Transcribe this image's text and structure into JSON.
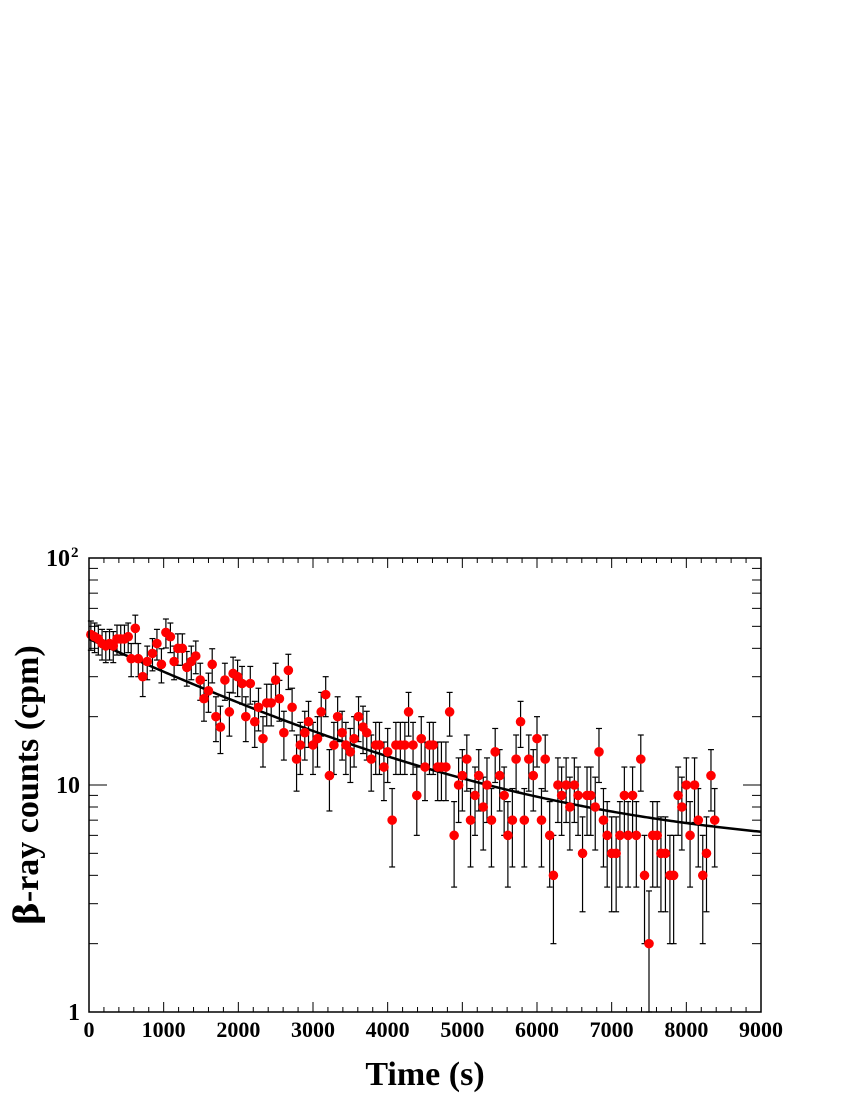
{
  "chart_data": {
    "type": "scatter",
    "title": "",
    "xlabel": "Time (s)",
    "ylabel_prefix": "β",
    "ylabel_rest": "-ray counts (cpm)",
    "xlim": [
      0,
      9000
    ],
    "ylim": [
      1,
      100
    ],
    "yscale": "log",
    "grid": false,
    "xticks": [
      {
        "value": 0,
        "label": "0"
      },
      {
        "value": 1000,
        "label": "1000"
      },
      {
        "value": 2000,
        "label": "2000"
      },
      {
        "value": 3000,
        "label": "3000"
      },
      {
        "value": 4000,
        "label": "4000"
      },
      {
        "value": 5000,
        "label": "5000"
      },
      {
        "value": 6000,
        "label": "6000"
      },
      {
        "value": 7000,
        "label": "7000"
      },
      {
        "value": 8000,
        "label": "8000"
      },
      {
        "value": 9000,
        "label": "9000"
      }
    ],
    "yticks": [
      {
        "value": 1,
        "label": "1",
        "exp": ""
      },
      {
        "value": 10,
        "label": "10",
        "exp": ""
      },
      {
        "value": 100,
        "label": "10",
        "exp": "2"
      }
    ],
    "marker_color": "#ff0000",
    "fit_color": "#000000",
    "error_bars": "sqrt(N)",
    "fit": {
      "A": 39.0,
      "tau": 2600,
      "B": 5.0
    },
    "points": [
      {
        "x": 25,
        "y": 46
      },
      {
        "x": 75,
        "y": 45
      },
      {
        "x": 125,
        "y": 44
      },
      {
        "x": 175,
        "y": 42
      },
      {
        "x": 225,
        "y": 41
      },
      {
        "x": 275,
        "y": 42
      },
      {
        "x": 325,
        "y": 41
      },
      {
        "x": 375,
        "y": 44
      },
      {
        "x": 425,
        "y": 44
      },
      {
        "x": 475,
        "y": 44
      },
      {
        "x": 525,
        "y": 45
      },
      {
        "x": 565,
        "y": 36
      },
      {
        "x": 620,
        "y": 49
      },
      {
        "x": 660,
        "y": 36
      },
      {
        "x": 720,
        "y": 30
      },
      {
        "x": 780,
        "y": 35
      },
      {
        "x": 850,
        "y": 38
      },
      {
        "x": 910,
        "y": 42
      },
      {
        "x": 970,
        "y": 34
      },
      {
        "x": 1030,
        "y": 47
      },
      {
        "x": 1090,
        "y": 45
      },
      {
        "x": 1140,
        "y": 35
      },
      {
        "x": 1190,
        "y": 40
      },
      {
        "x": 1250,
        "y": 40
      },
      {
        "x": 1310,
        "y": 33
      },
      {
        "x": 1370,
        "y": 35
      },
      {
        "x": 1430,
        "y": 37
      },
      {
        "x": 1490,
        "y": 29
      },
      {
        "x": 1540,
        "y": 24
      },
      {
        "x": 1600,
        "y": 26
      },
      {
        "x": 1650,
        "y": 34
      },
      {
        "x": 1700,
        "y": 20
      },
      {
        "x": 1760,
        "y": 18
      },
      {
        "x": 1820,
        "y": 29
      },
      {
        "x": 1880,
        "y": 21
      },
      {
        "x": 1930,
        "y": 31
      },
      {
        "x": 1990,
        "y": 30
      },
      {
        "x": 2050,
        "y": 28
      },
      {
        "x": 2100,
        "y": 20
      },
      {
        "x": 2160,
        "y": 28
      },
      {
        "x": 2220,
        "y": 19
      },
      {
        "x": 2270,
        "y": 22
      },
      {
        "x": 2330,
        "y": 16
      },
      {
        "x": 2380,
        "y": 23
      },
      {
        "x": 2440,
        "y": 23
      },
      {
        "x": 2500,
        "y": 29
      },
      {
        "x": 2550,
        "y": 24
      },
      {
        "x": 2610,
        "y": 17
      },
      {
        "x": 2670,
        "y": 32
      },
      {
        "x": 2720,
        "y": 22
      },
      {
        "x": 2780,
        "y": 13
      },
      {
        "x": 2830,
        "y": 15
      },
      {
        "x": 2890,
        "y": 17
      },
      {
        "x": 2940,
        "y": 19
      },
      {
        "x": 3000,
        "y": 15
      },
      {
        "x": 3060,
        "y": 16
      },
      {
        "x": 3110,
        "y": 21
      },
      {
        "x": 3170,
        "y": 25
      },
      {
        "x": 3220,
        "y": 11
      },
      {
        "x": 3280,
        "y": 15
      },
      {
        "x": 3330,
        "y": 20
      },
      {
        "x": 3390,
        "y": 17
      },
      {
        "x": 3440,
        "y": 15
      },
      {
        "x": 3500,
        "y": 14
      },
      {
        "x": 3550,
        "y": 16
      },
      {
        "x": 3610,
        "y": 20
      },
      {
        "x": 3670,
        "y": 18
      },
      {
        "x": 3720,
        "y": 17
      },
      {
        "x": 3780,
        "y": 13
      },
      {
        "x": 3840,
        "y": 15
      },
      {
        "x": 3890,
        "y": 15
      },
      {
        "x": 3950,
        "y": 12
      },
      {
        "x": 4000,
        "y": 14
      },
      {
        "x": 4060,
        "y": 7
      },
      {
        "x": 4110,
        "y": 15
      },
      {
        "x": 4170,
        "y": 15
      },
      {
        "x": 4230,
        "y": 15
      },
      {
        "x": 4280,
        "y": 21
      },
      {
        "x": 4340,
        "y": 15
      },
      {
        "x": 4390,
        "y": 9
      },
      {
        "x": 4450,
        "y": 16
      },
      {
        "x": 4500,
        "y": 12
      },
      {
        "x": 4560,
        "y": 15
      },
      {
        "x": 4610,
        "y": 15
      },
      {
        "x": 4670,
        "y": 12
      },
      {
        "x": 4720,
        "y": 12
      },
      {
        "x": 4780,
        "y": 12
      },
      {
        "x": 4830,
        "y": 21
      },
      {
        "x": 4890,
        "y": 6
      },
      {
        "x": 4950,
        "y": 10
      },
      {
        "x": 5000,
        "y": 11
      },
      {
        "x": 5060,
        "y": 13
      },
      {
        "x": 5110,
        "y": 7
      },
      {
        "x": 5170,
        "y": 9
      },
      {
        "x": 5220,
        "y": 11
      },
      {
        "x": 5280,
        "y": 8
      },
      {
        "x": 5330,
        "y": 10
      },
      {
        "x": 5390,
        "y": 7
      },
      {
        "x": 5440,
        "y": 14
      },
      {
        "x": 5500,
        "y": 11
      },
      {
        "x": 5560,
        "y": 9
      },
      {
        "x": 5610,
        "y": 6
      },
      {
        "x": 5670,
        "y": 7
      },
      {
        "x": 5720,
        "y": 13
      },
      {
        "x": 5780,
        "y": 19
      },
      {
        "x": 5830,
        "y": 7
      },
      {
        "x": 5890,
        "y": 13
      },
      {
        "x": 5950,
        "y": 11
      },
      {
        "x": 6000,
        "y": 16
      },
      {
        "x": 6060,
        "y": 7
      },
      {
        "x": 6110,
        "y": 13
      },
      {
        "x": 6170,
        "y": 6
      },
      {
        "x": 6220,
        "y": 4
      },
      {
        "x": 6280,
        "y": 10
      },
      {
        "x": 6330,
        "y": 9
      },
      {
        "x": 6390,
        "y": 10
      },
      {
        "x": 6440,
        "y": 8
      },
      {
        "x": 6500,
        "y": 10
      },
      {
        "x": 6550,
        "y": 9
      },
      {
        "x": 6610,
        "y": 5
      },
      {
        "x": 6670,
        "y": 9
      },
      {
        "x": 6720,
        "y": 9
      },
      {
        "x": 6780,
        "y": 8
      },
      {
        "x": 6830,
        "y": 14
      },
      {
        "x": 6890,
        "y": 7
      },
      {
        "x": 6940,
        "y": 6
      },
      {
        "x": 7000,
        "y": 5
      },
      {
        "x": 7060,
        "y": 5
      },
      {
        "x": 7110,
        "y": 6
      },
      {
        "x": 7170,
        "y": 9
      },
      {
        "x": 7220,
        "y": 6
      },
      {
        "x": 7280,
        "y": 9
      },
      {
        "x": 7330,
        "y": 6
      },
      {
        "x": 7390,
        "y": 13
      },
      {
        "x": 7440,
        "y": 4
      },
      {
        "x": 7500,
        "y": 2
      },
      {
        "x": 7550,
        "y": 6
      },
      {
        "x": 7610,
        "y": 6
      },
      {
        "x": 7660,
        "y": 5
      },
      {
        "x": 7720,
        "y": 5
      },
      {
        "x": 7780,
        "y": 4
      },
      {
        "x": 7830,
        "y": 4
      },
      {
        "x": 7890,
        "y": 9
      },
      {
        "x": 7940,
        "y": 8
      },
      {
        "x": 8000,
        "y": 10
      },
      {
        "x": 8050,
        "y": 6
      },
      {
        "x": 8110,
        "y": 10
      },
      {
        "x": 8160,
        "y": 7
      },
      {
        "x": 8220,
        "y": 4
      },
      {
        "x": 8270,
        "y": 5
      },
      {
        "x": 8330,
        "y": 11
      },
      {
        "x": 8380,
        "y": 7
      }
    ]
  }
}
